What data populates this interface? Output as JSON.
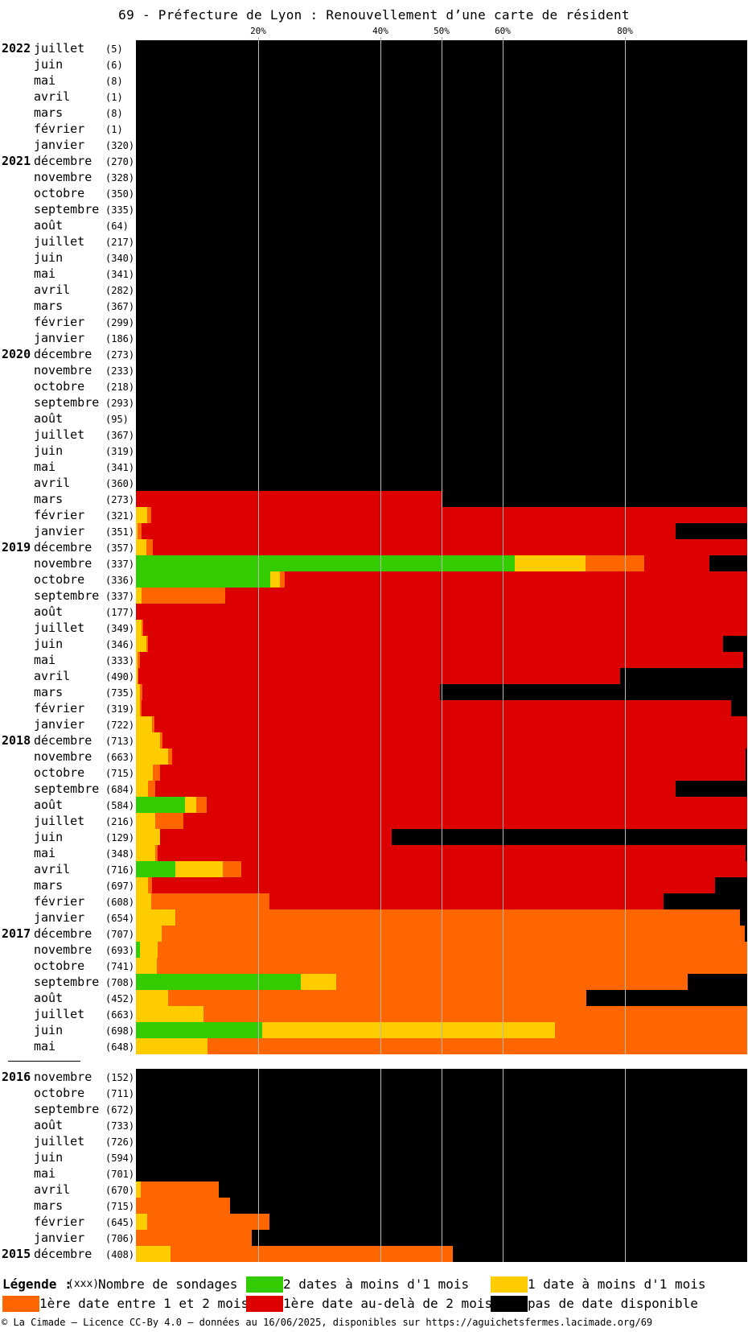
{
  "title": "69 - Préfecture de Lyon : Renouvellement d’une carte de résident",
  "colors": {
    "green": "#33cc00",
    "yellow": "#ffcc00",
    "orange": "#ff6600",
    "red": "#dd0000",
    "black": "#000000"
  },
  "chart_data": {
    "type": "bar",
    "orientation": "horizontal-stacked-100",
    "x_ticks": [
      "20%",
      "40%",
      "50%",
      "60%",
      "80%"
    ],
    "series_order": [
      "green",
      "yellow",
      "orange",
      "red",
      "black"
    ],
    "groups": [
      {
        "rows": [
          {
            "year": "2022",
            "month": "juillet",
            "count": "(5)",
            "v": [
              0,
              0,
              0,
              0,
              100
            ]
          },
          {
            "year": "",
            "month": "juin",
            "count": "(6)",
            "v": [
              0,
              0,
              0,
              0,
              100
            ]
          },
          {
            "year": "",
            "month": "mai",
            "count": "(8)",
            "v": [
              0,
              0,
              0,
              0,
              100
            ]
          },
          {
            "year": "",
            "month": "avril",
            "count": "(1)",
            "v": [
              0,
              0,
              0,
              0,
              100
            ]
          },
          {
            "year": "",
            "month": "mars",
            "count": "(8)",
            "v": [
              0,
              0,
              0,
              0,
              100
            ]
          },
          {
            "year": "",
            "month": "février",
            "count": "(1)",
            "v": [
              0,
              0,
              0,
              0,
              100
            ]
          },
          {
            "year": "",
            "month": "janvier",
            "count": "(320)",
            "v": [
              0,
              0,
              0,
              0,
              100
            ]
          },
          {
            "year": "2021",
            "month": "décembre",
            "count": "(270)",
            "v": [
              0,
              0,
              0,
              0,
              100
            ]
          },
          {
            "year": "",
            "month": "novembre",
            "count": "(328)",
            "v": [
              0,
              0,
              0,
              0,
              100
            ]
          },
          {
            "year": "",
            "month": "octobre",
            "count": "(350)",
            "v": [
              0,
              0,
              0,
              0,
              100
            ]
          },
          {
            "year": "",
            "month": "septembre",
            "count": "(335)",
            "v": [
              0,
              0,
              0,
              0,
              100
            ]
          },
          {
            "year": "",
            "month": "août",
            "count": "(64)",
            "v": [
              0,
              0,
              0,
              0,
              100
            ]
          },
          {
            "year": "",
            "month": "juillet",
            "count": "(217)",
            "v": [
              0,
              0,
              0,
              0,
              100
            ]
          },
          {
            "year": "",
            "month": "juin",
            "count": "(340)",
            "v": [
              0,
              0,
              0,
              0,
              100
            ]
          },
          {
            "year": "",
            "month": "mai",
            "count": "(341)",
            "v": [
              0,
              0,
              0,
              0,
              100
            ]
          },
          {
            "year": "",
            "month": "avril",
            "count": "(282)",
            "v": [
              0,
              0,
              0,
              0,
              100
            ]
          },
          {
            "year": "",
            "month": "mars",
            "count": "(367)",
            "v": [
              0,
              0,
              0,
              0,
              100
            ]
          },
          {
            "year": "",
            "month": "février",
            "count": "(299)",
            "v": [
              0,
              0,
              0,
              0,
              100
            ]
          },
          {
            "year": "",
            "month": "janvier",
            "count": "(186)",
            "v": [
              0,
              0,
              0,
              0,
              100
            ]
          },
          {
            "year": "2020",
            "month": "décembre",
            "count": "(273)",
            "v": [
              0,
              0,
              0,
              0,
              100
            ]
          },
          {
            "year": "",
            "month": "novembre",
            "count": "(233)",
            "v": [
              0,
              0,
              0,
              0,
              100
            ]
          },
          {
            "year": "",
            "month": "octobre",
            "count": "(218)",
            "v": [
              0,
              0,
              0,
              0,
              100
            ]
          },
          {
            "year": "",
            "month": "septembre",
            "count": "(293)",
            "v": [
              0,
              0,
              0,
              0,
              100
            ]
          },
          {
            "year": "",
            "month": "août",
            "count": "(95)",
            "v": [
              0,
              0,
              0,
              0,
              100
            ]
          },
          {
            "year": "",
            "month": "juillet",
            "count": "(367)",
            "v": [
              0,
              0,
              0,
              0,
              100
            ]
          },
          {
            "year": "",
            "month": "juin",
            "count": "(319)",
            "v": [
              0,
              0,
              0,
              0,
              100
            ]
          },
          {
            "year": "",
            "month": "mai",
            "count": "(341)",
            "v": [
              0,
              0,
              0,
              0,
              100
            ]
          },
          {
            "year": "",
            "month": "avril",
            "count": "(360)",
            "v": [
              0,
              0,
              0,
              0,
              100
            ]
          },
          {
            "year": "",
            "month": "mars",
            "count": "(273)",
            "v": [
              0,
              0,
              0,
              50,
              50
            ]
          },
          {
            "year": "",
            "month": "février",
            "count": "(321)",
            "v": [
              0,
              1.9,
              0.6,
              97.5,
              0
            ]
          },
          {
            "year": "",
            "month": "janvier",
            "count": "(351)",
            "v": [
              0,
              0.3,
              0.6,
              87.4,
              11.7
            ]
          },
          {
            "year": "2019",
            "month": "décembre",
            "count": "(357)",
            "v": [
              0,
              1.7,
              1.1,
              97.2,
              0
            ]
          },
          {
            "year": "",
            "month": "novembre",
            "count": "(337)",
            "v": [
              62,
              11.6,
              9.5,
              10.7,
              6.2
            ]
          },
          {
            "year": "",
            "month": "octobre",
            "count": "(336)",
            "v": [
              22,
              1.5,
              0.9,
              75.6,
              0
            ]
          },
          {
            "year": "",
            "month": "septembre",
            "count": "(337)",
            "v": [
              0,
              0.9,
              13.7,
              85.4,
              0
            ]
          },
          {
            "year": "",
            "month": "août",
            "count": "(177)",
            "v": [
              0,
              0,
              0,
              100,
              0
            ]
          },
          {
            "year": "",
            "month": "juillet",
            "count": "(349)",
            "v": [
              0,
              0.9,
              0.3,
              98.8,
              0
            ]
          },
          {
            "year": "",
            "month": "juin",
            "count": "(346)",
            "v": [
              0,
              1.7,
              0.3,
              94,
              4
            ]
          },
          {
            "year": "",
            "month": "mai",
            "count": "(333)",
            "v": [
              0,
              0.3,
              0.3,
              98.8,
              0.6
            ]
          },
          {
            "year": "",
            "month": "avril",
            "count": "(490)",
            "v": [
              0,
              0.2,
              0.2,
              78.8,
              20.8
            ]
          },
          {
            "year": "",
            "month": "mars",
            "count": "(735)",
            "v": [
              0,
              0.7,
              0.3,
              48.8,
              50.2
            ]
          },
          {
            "year": "",
            "month": "février",
            "count": "(319)",
            "v": [
              0,
              0.6,
              0.3,
              96.5,
              2.6
            ]
          },
          {
            "year": "",
            "month": "janvier",
            "count": "(722)",
            "v": [
              0,
              2.6,
              0.4,
              97,
              0
            ]
          },
          {
            "year": "2018",
            "month": "décembre",
            "count": "(713)",
            "v": [
              0,
              3.9,
              0.4,
              95.7,
              0
            ]
          },
          {
            "year": "",
            "month": "novembre",
            "count": "(663)",
            "v": [
              0,
              5.3,
              0.6,
              93.9,
              0.2
            ]
          },
          {
            "year": "",
            "month": "octobre",
            "count": "(715)",
            "v": [
              0,
              2.8,
              1.1,
              95.9,
              0.2
            ]
          },
          {
            "year": "",
            "month": "septembre",
            "count": "(684)",
            "v": [
              0,
              2,
              1.1,
              85.2,
              11.7
            ]
          },
          {
            "year": "",
            "month": "août",
            "count": "(584)",
            "v": [
              8,
              1.9,
              1.7,
              88.4,
              0
            ]
          },
          {
            "year": "",
            "month": "juillet",
            "count": "(216)",
            "v": [
              0,
              3.2,
              4.6,
              92.2,
              0
            ]
          },
          {
            "year": "",
            "month": "juin",
            "count": "(129)",
            "v": [
              0,
              3.9,
              0,
              38,
              58.1
            ]
          },
          {
            "year": "",
            "month": "mai",
            "count": "(348)",
            "v": [
              0,
              3.2,
              0.3,
              96.2,
              0.3
            ]
          },
          {
            "year": "",
            "month": "avril",
            "count": "(716)",
            "v": [
              6.5,
              7.7,
              3,
              82.8,
              0
            ]
          },
          {
            "year": "",
            "month": "mars",
            "count": "(697)",
            "v": [
              0,
              2,
              0.6,
              92.2,
              5.2
            ]
          },
          {
            "year": "",
            "month": "février",
            "count": "(608)",
            "v": [
              0,
              2.5,
              19.4,
              64.4,
              13.7
            ]
          },
          {
            "year": "",
            "month": "janvier",
            "count": "(654)",
            "v": [
              0,
              6.4,
              92.4,
              0,
              1.2
            ]
          },
          {
            "year": "2017",
            "month": "décembre",
            "count": "(707)",
            "v": [
              0,
              4.2,
              95.4,
              0,
              0.4
            ]
          },
          {
            "year": "",
            "month": "novembre",
            "count": "(693)",
            "v": [
              0.7,
              2.8,
              96.5,
              0,
              0
            ]
          },
          {
            "year": "",
            "month": "octobre",
            "count": "(741)",
            "v": [
              0,
              3.4,
              96.6,
              0,
              0
            ]
          },
          {
            "year": "",
            "month": "septembre",
            "count": "(708)",
            "v": [
              27,
              5.8,
              57.4,
              0,
              9.8
            ]
          },
          {
            "year": "",
            "month": "août",
            "count": "(452)",
            "v": [
              0,
              5.3,
              68.4,
              0,
              26.3
            ]
          },
          {
            "year": "",
            "month": "juillet",
            "count": "(663)",
            "v": [
              0,
              11,
              89,
              0,
              0
            ]
          },
          {
            "year": "",
            "month": "juin",
            "count": "(698)",
            "v": [
              20.6,
              48,
              31.4,
              0,
              0
            ]
          },
          {
            "year": "",
            "month": "mai",
            "count": "(648)",
            "v": [
              0,
              11.7,
              88.3,
              0,
              0
            ]
          }
        ]
      },
      {
        "rows": [
          {
            "year": "2016",
            "month": "novembre",
            "count": "(152)",
            "v": [
              0,
              0,
              0,
              0,
              100
            ]
          },
          {
            "year": "",
            "month": "octobre",
            "count": "(711)",
            "v": [
              0,
              0,
              0,
              0,
              100
            ]
          },
          {
            "year": "",
            "month": "septembre",
            "count": "(672)",
            "v": [
              0,
              0,
              0,
              0,
              100
            ]
          },
          {
            "year": "",
            "month": "août",
            "count": "(733)",
            "v": [
              0,
              0,
              0,
              0,
              100
            ]
          },
          {
            "year": "",
            "month": "juillet",
            "count": "(726)",
            "v": [
              0,
              0,
              0,
              0,
              100
            ]
          },
          {
            "year": "",
            "month": "juin",
            "count": "(594)",
            "v": [
              0,
              0,
              0,
              0,
              100
            ]
          },
          {
            "year": "",
            "month": "mai",
            "count": "(701)",
            "v": [
              0,
              0,
              0,
              0,
              100
            ]
          },
          {
            "year": "",
            "month": "avril",
            "count": "(670)",
            "v": [
              0,
              0.8,
              12.8,
              0,
              86.4
            ]
          },
          {
            "year": "",
            "month": "mars",
            "count": "(715)",
            "v": [
              0,
              0,
              15.4,
              0,
              84.6
            ]
          },
          {
            "year": "",
            "month": "février",
            "count": "(645)",
            "v": [
              0,
              1.9,
              20,
              0,
              78.1
            ]
          },
          {
            "year": "",
            "month": "janvier",
            "count": "(706)",
            "v": [
              0,
              0,
              18.9,
              0,
              81.1
            ]
          },
          {
            "year": "2015",
            "month": "décembre",
            "count": "(408)",
            "v": [
              0,
              5.6,
              46.3,
              0,
              48.1
            ]
          }
        ]
      }
    ]
  },
  "legend": {
    "title": "Légende :",
    "count_key": "(xxx)",
    "count_text": "Nombre de sondages",
    "items": [
      {
        "color": "#33cc00",
        "text": "2 dates à moins d'1 mois"
      },
      {
        "color": "#ffcc00",
        "text": "1 date à moins d'1 mois"
      },
      {
        "color": "#ff6600",
        "text": "1ère date entre 1 et 2 mois"
      },
      {
        "color": "#dd0000",
        "text": "1ère date au-delà de 2 mois"
      },
      {
        "color": "#000000",
        "text": "pas de date disponible"
      }
    ]
  },
  "footer": "© La Cimade — Licence CC-By 4.0 — données au 16/06/2025, disponibles sur https://aguichetsfermes.lacimade.org/69"
}
